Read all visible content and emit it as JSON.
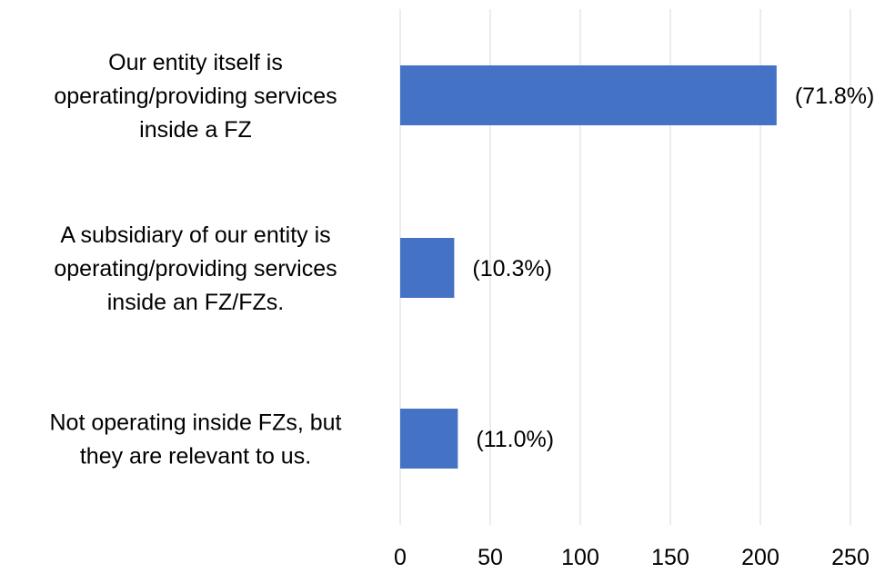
{
  "chart_data": {
    "type": "bar",
    "orientation": "horizontal",
    "title": "",
    "xlabel": "",
    "ylabel": "",
    "xlim": [
      0,
      250
    ],
    "xticks": [
      0,
      50,
      100,
      150,
      200,
      250
    ],
    "grid": "vertical",
    "legend": "none",
    "bar_color": "#4472c4",
    "categories": [
      [
        "Our entity itself is",
        "operating/providing services",
        "inside a FZ"
      ],
      [
        "A subsidiary of our entity is",
        "operating/providing services",
        "inside an FZ/FZs."
      ],
      [
        "Not operating inside FZs, but",
        "they are relevant to us."
      ]
    ],
    "values": [
      209,
      30,
      32
    ],
    "data_labels": [
      "(71.8%)",
      "(10.3%)",
      "(11.0%)"
    ]
  }
}
